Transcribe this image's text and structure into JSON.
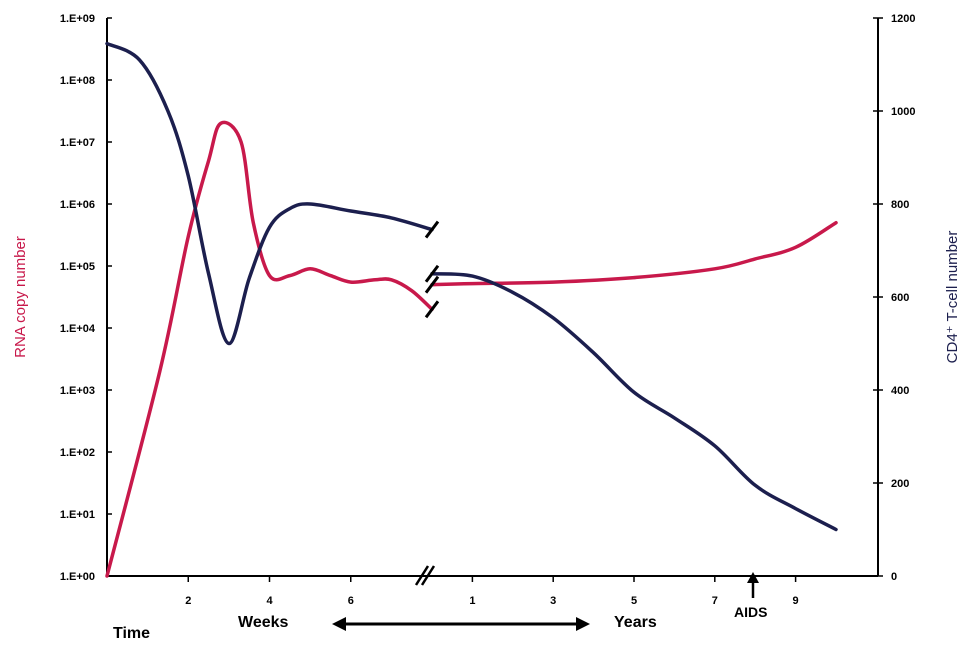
{
  "chart_data": {
    "type": "line",
    "title": "",
    "ylabel_left": "RNA copy number",
    "ylabel_right": "CD4⁺ T-cell number",
    "y_left_scale": "log",
    "y_left_ticks": [
      "1.E+00",
      "1.E+01",
      "1.E+02",
      "1.E+03",
      "1.E+04",
      "1.E+05",
      "1.E+06",
      "1.E+07",
      "1.E+08",
      "1.E+09"
    ],
    "y_left_range": [
      1,
      1000000000
    ],
    "y_right_ticks": [
      "0",
      "200",
      "400",
      "600",
      "800",
      "1000",
      "1200"
    ],
    "y_right_range": [
      0,
      1200
    ],
    "x_weeks_ticks": [
      "2",
      "4",
      "6"
    ],
    "x_years_ticks": [
      "1",
      "3",
      "5",
      "7",
      "9"
    ],
    "x_axis_break": true,
    "x_labels": {
      "time": "Time",
      "weeks": "Weeks",
      "years": "Years",
      "aids": "AIDS"
    },
    "grid": false,
    "legend": "none",
    "colors": {
      "rna": "#c8194b",
      "cd4": "#1c1f4e",
      "axis": "#000000"
    },
    "series": [
      {
        "axis": "left",
        "segments": [
          {
            "period": "weeks",
            "x": [
              0,
              1.3,
              2,
              2.5,
              2.8,
              3.3,
              3.6,
              4,
              4.5,
              5,
              5.5,
              6,
              6.6,
              7,
              7.5,
              8
            ],
            "y": [
              1,
              2000,
              300000,
              5000000,
              20000000,
              10000000,
              500000,
              70000,
              70000,
              90000,
              70000,
              55000,
              60000,
              60000,
              40000,
              20000
            ]
          },
          {
            "period": "years",
            "x": [
              0,
              1,
              3,
              5,
              7,
              8,
              9,
              10
            ],
            "y": [
              50000,
              52000,
              55000,
              65000,
              90000,
              130000,
              200000,
              500000
            ]
          }
        ]
      },
      {
        "axis": "right",
        "segments": [
          {
            "period": "weeks",
            "x": [
              0,
              0.8,
              1.5,
              2,
              2.5,
              3,
              3.5,
              4,
              4.5,
              5,
              6,
              7,
              8
            ],
            "y": [
              1145,
              1110,
              1000,
              860,
              650,
              500,
              640,
              750,
              790,
              800,
              785,
              770,
              745
            ]
          },
          {
            "period": "years",
            "x": [
              0,
              1,
              2,
              3,
              4,
              5,
              6,
              7,
              8,
              9,
              10
            ],
            "y": [
              650,
              645,
              610,
              555,
              480,
              395,
              340,
              280,
              195,
              145,
              100
            ]
          }
        ]
      }
    ],
    "annotations": [
      "AIDS"
    ]
  }
}
